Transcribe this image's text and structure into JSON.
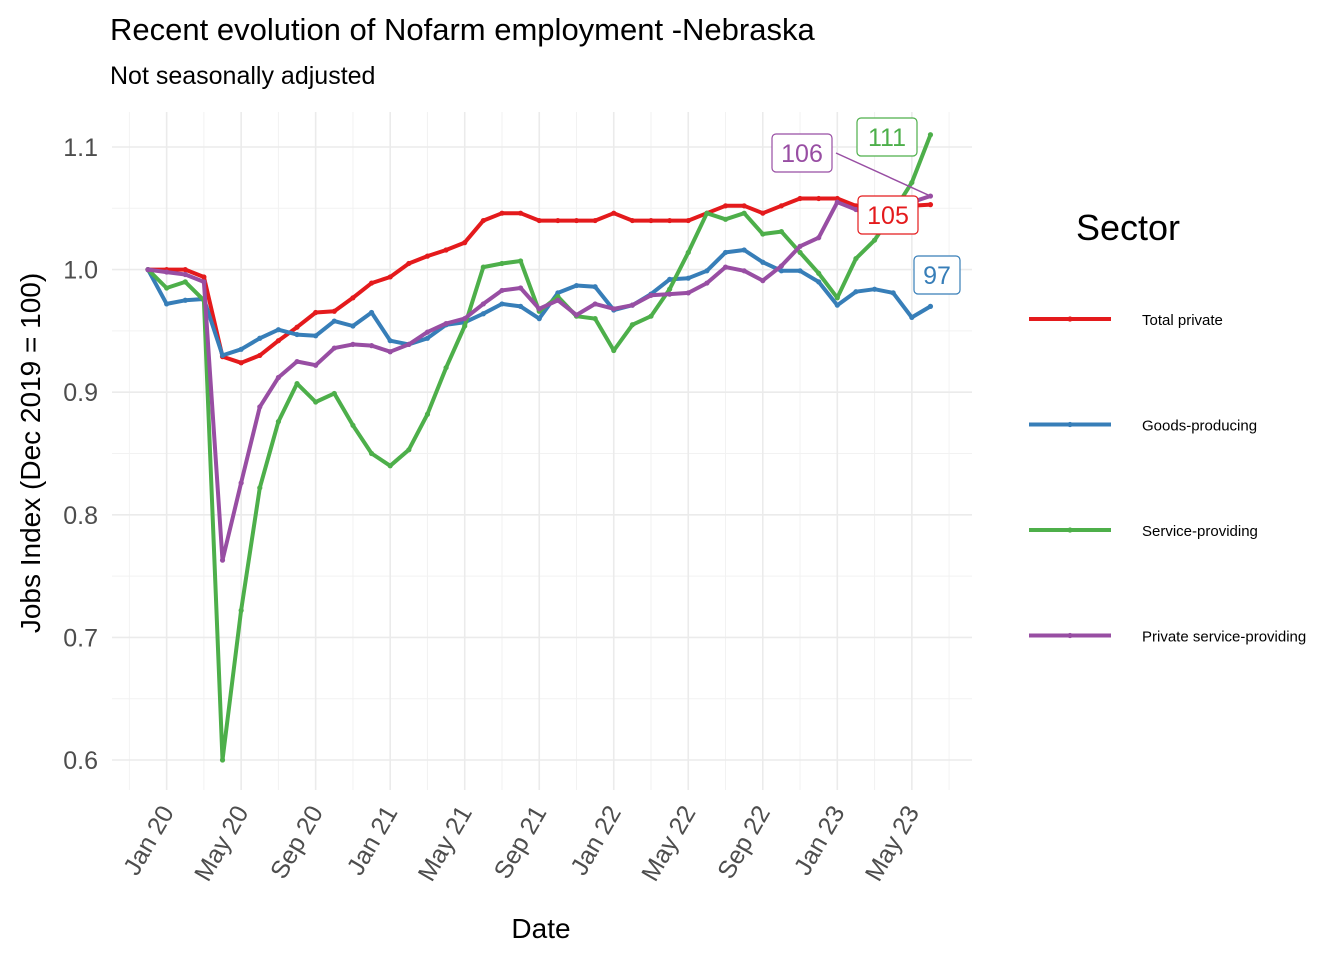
{
  "chart_data": {
    "type": "line",
    "title": "Recent evolution of Nofarm employment -Nebraska",
    "subtitle": "Not seasonally adjusted",
    "xlabel": "Date",
    "ylabel": "Jobs Index (Dec 2019 = 100)",
    "x": [
      "Dec 19",
      "Jan 20",
      "Feb 20",
      "Mar 20",
      "Apr 20",
      "May 20",
      "Jun 20",
      "Jul 20",
      "Aug 20",
      "Sep 20",
      "Oct 20",
      "Nov 20",
      "Dec 20",
      "Jan 21",
      "Feb 21",
      "Mar 21",
      "Apr 21",
      "May 21",
      "Jun 21",
      "Jul 21",
      "Aug 21",
      "Sep 21",
      "Oct 21",
      "Nov 21",
      "Dec 21",
      "Jan 22",
      "Feb 22",
      "Mar 22",
      "Apr 22",
      "May 22",
      "Jun 22",
      "Jul 22",
      "Aug 22",
      "Sep 22",
      "Oct 22",
      "Nov 22",
      "Dec 22",
      "Jan 23",
      "Feb 23",
      "Mar 23",
      "Apr 23",
      "May 23",
      "Jun 23"
    ],
    "xticks": [
      "Jan 20",
      "May 20",
      "Sep 20",
      "Jan 21",
      "May 21",
      "Sep 21",
      "Jan 22",
      "May 22",
      "Sep 22",
      "Jan 23",
      "May 23"
    ],
    "xtick_index": [
      1,
      5,
      9,
      13,
      17,
      21,
      25,
      29,
      33,
      37,
      41
    ],
    "ylim": [
      0.58,
      1.12
    ],
    "yticks": [
      0.6,
      0.7,
      0.8,
      0.9,
      1.0,
      1.1
    ],
    "ytick_labels": [
      "0.6",
      "0.7",
      "0.8",
      "0.9",
      "1.0",
      "1.1"
    ],
    "legend_title": "Sector",
    "legend_position": "right",
    "series": [
      {
        "name": "Total private",
        "color": "#e41a1c",
        "end_label": "105",
        "values": [
          1.0,
          1.0,
          1.0,
          0.994,
          0.929,
          0.924,
          0.93,
          0.942,
          0.953,
          0.965,
          0.966,
          0.977,
          0.989,
          0.994,
          1.005,
          1.011,
          1.016,
          1.022,
          1.04,
          1.046,
          1.046,
          1.04,
          1.04,
          1.04,
          1.04,
          1.046,
          1.04,
          1.04,
          1.04,
          1.04,
          1.046,
          1.052,
          1.052,
          1.046,
          1.052,
          1.058,
          1.058,
          1.058,
          1.052,
          1.046,
          1.046,
          1.052,
          1.053
        ]
      },
      {
        "name": "Goods-producing",
        "color": "#377eb8",
        "end_label": "97",
        "values": [
          1.0,
          0.972,
          0.975,
          0.976,
          0.93,
          0.935,
          0.944,
          0.951,
          0.947,
          0.946,
          0.958,
          0.954,
          0.965,
          0.942,
          0.939,
          0.944,
          0.955,
          0.957,
          0.964,
          0.972,
          0.97,
          0.96,
          0.981,
          0.987,
          0.986,
          0.967,
          0.971,
          0.98,
          0.992,
          0.993,
          0.999,
          1.014,
          1.016,
          1.006,
          0.999,
          0.999,
          0.99,
          0.971,
          0.982,
          0.984,
          0.981,
          0.961,
          0.97
        ]
      },
      {
        "name": "Service-providing",
        "color": "#4daf4a",
        "end_label": "111",
        "values": [
          1.0,
          0.985,
          0.99,
          0.975,
          0.6,
          0.722,
          0.822,
          0.876,
          0.907,
          0.892,
          0.899,
          0.873,
          0.85,
          0.84,
          0.853,
          0.882,
          0.92,
          0.954,
          1.002,
          1.005,
          1.007,
          0.966,
          0.978,
          0.962,
          0.96,
          0.934,
          0.955,
          0.962,
          0.984,
          1.014,
          1.046,
          1.041,
          1.046,
          1.029,
          1.031,
          1.014,
          0.997,
          0.977,
          1.009,
          1.024,
          1.047,
          1.071,
          1.11
        ]
      },
      {
        "name": "Private service-providing",
        "color": "#984ea3",
        "end_label": "106",
        "values": [
          1.0,
          0.998,
          0.996,
          0.99,
          0.763,
          0.826,
          0.888,
          0.912,
          0.925,
          0.922,
          0.936,
          0.939,
          0.938,
          0.933,
          0.939,
          0.949,
          0.956,
          0.96,
          0.972,
          0.983,
          0.985,
          0.968,
          0.975,
          0.963,
          0.972,
          0.968,
          0.971,
          0.979,
          0.98,
          0.981,
          0.989,
          1.002,
          0.999,
          0.991,
          1.003,
          1.019,
          1.026,
          1.055,
          1.049,
          1.043,
          1.051,
          1.055,
          1.06
        ]
      }
    ]
  }
}
